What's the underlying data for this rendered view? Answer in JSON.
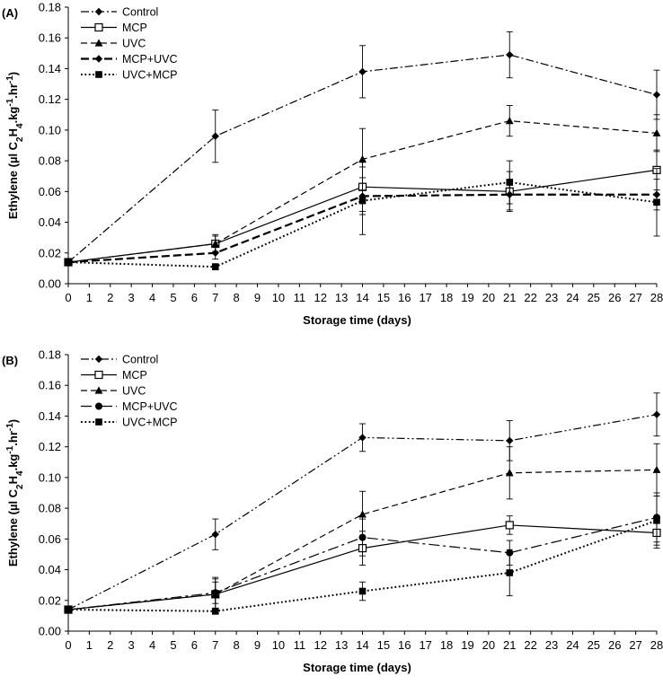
{
  "chart_data": [
    {
      "type": "line",
      "panel_label": "(A)",
      "xlabel": "Storage time (days)",
      "ylabel": "Ethylene (µl C2H4.kg-1.hr-1)",
      "xlim": [
        0,
        28
      ],
      "ylim": [
        0,
        0.18
      ],
      "x_ticks": [
        "0",
        "1",
        "2",
        "3",
        "4",
        "5",
        "6",
        "7",
        "8",
        "9",
        "10",
        "11",
        "12",
        "13",
        "14",
        "15",
        "16",
        "17",
        "18",
        "19",
        "20",
        "21",
        "22",
        "23",
        "24",
        "25",
        "26",
        "27",
        "28"
      ],
      "y_ticks": [
        "0.00",
        "0.02",
        "0.04",
        "0.06",
        "0.08",
        "0.10",
        "0.12",
        "0.14",
        "0.16",
        "0.18"
      ],
      "legend_position": "top-left",
      "series": [
        {
          "name": "Control",
          "x": [
            0,
            7,
            14,
            21,
            28
          ],
          "values": [
            0.014,
            0.096,
            0.138,
            0.149,
            0.123
          ],
          "errors": [
            0,
            0.017,
            0.017,
            0.015,
            0.016
          ],
          "marker": "diamond",
          "dash": "dashdot"
        },
        {
          "name": "MCP",
          "x": [
            0,
            7,
            14,
            21,
            28
          ],
          "values": [
            0.014,
            0.026,
            0.063,
            0.06,
            0.074
          ],
          "errors": [
            0,
            0.006,
            0.016,
            0.013,
            0.013
          ],
          "marker": "square-open",
          "dash": "solid"
        },
        {
          "name": "UVC",
          "x": [
            0,
            7,
            14,
            21,
            28
          ],
          "values": [
            0.014,
            0.026,
            0.081,
            0.106,
            0.098
          ],
          "errors": [
            0,
            0.005,
            0.02,
            0.01,
            0.012
          ],
          "marker": "triangle",
          "dash": "dashed"
        },
        {
          "name": "MCP+UVC",
          "x": [
            0,
            7,
            14,
            21,
            28
          ],
          "values": [
            0.014,
            0.02,
            0.057,
            0.058,
            0.058
          ],
          "errors": [
            0,
            0.004,
            0.012,
            0.01,
            0.01
          ],
          "marker": "diamond",
          "dash": "longdash-bold"
        },
        {
          "name": "UVC+MCP",
          "x": [
            0,
            7,
            14,
            21,
            28
          ],
          "values": [
            0.014,
            0.011,
            0.054,
            0.066,
            0.053
          ],
          "errors": [
            0,
            0.002,
            0.022,
            0.014,
            0.022
          ],
          "marker": "square",
          "dash": "dotted"
        }
      ]
    },
    {
      "type": "line",
      "panel_label": "(B)",
      "xlabel": "Storage time (days)",
      "ylabel": "Ethylene (µl C2H4.kg-1.hr-1)",
      "xlim": [
        0,
        28
      ],
      "ylim": [
        0,
        0.18
      ],
      "x_ticks": [
        "0",
        "1",
        "2",
        "3",
        "4",
        "5",
        "6",
        "7",
        "8",
        "9",
        "10",
        "11",
        "12",
        "13",
        "14",
        "15",
        "16",
        "17",
        "18",
        "19",
        "20",
        "21",
        "22",
        "23",
        "24",
        "25",
        "26",
        "27",
        "28"
      ],
      "y_ticks": [
        "0.00",
        "0.02",
        "0.04",
        "0.06",
        "0.08",
        "0.10",
        "0.12",
        "0.14",
        "0.16",
        "0.18"
      ],
      "legend_position": "top-left",
      "series": [
        {
          "name": "Control",
          "x": [
            0,
            7,
            14,
            21,
            28
          ],
          "values": [
            0.014,
            0.063,
            0.126,
            0.124,
            0.141
          ],
          "errors": [
            0,
            0.01,
            0.009,
            0.013,
            0.014
          ],
          "marker": "diamond",
          "dash": "dashdotdot"
        },
        {
          "name": "MCP",
          "x": [
            0,
            7,
            14,
            21,
            28
          ],
          "values": [
            0.014,
            0.024,
            0.054,
            0.069,
            0.064
          ],
          "errors": [
            0,
            0.01,
            0.011,
            0.006,
            0.01
          ],
          "marker": "square-open",
          "dash": "solid"
        },
        {
          "name": "UVC",
          "x": [
            0,
            7,
            14,
            21,
            28
          ],
          "values": [
            0.014,
            0.024,
            0.076,
            0.103,
            0.105
          ],
          "errors": [
            0,
            0.011,
            0.015,
            0.017,
            0.017
          ],
          "marker": "triangle",
          "dash": "dashed"
        },
        {
          "name": "MCP+UVC",
          "x": [
            0,
            7,
            14,
            21,
            28
          ],
          "values": [
            0.014,
            0.025,
            0.061,
            0.051,
            0.074
          ],
          "errors": [
            0,
            0.007,
            0.012,
            0.008,
            0.016
          ],
          "marker": "circle",
          "dash": "longdashdot"
        },
        {
          "name": "UVC+MCP",
          "x": [
            0,
            7,
            14,
            21,
            28
          ],
          "values": [
            0.014,
            0.013,
            0.026,
            0.038,
            0.072
          ],
          "errors": [
            0,
            0.002,
            0.006,
            0.015,
            0.016
          ],
          "marker": "square",
          "dash": "dotted"
        }
      ]
    }
  ]
}
